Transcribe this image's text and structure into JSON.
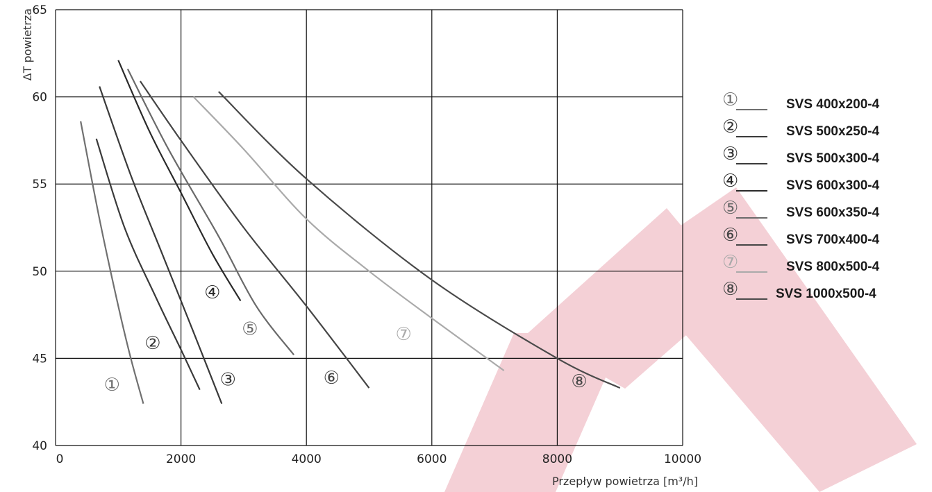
{
  "chart_data": {
    "type": "line",
    "xlabel": "Przepływ powietrza [m³/h]",
    "ylabel": "ΔT powietrza",
    "xlim": [
      0,
      10000
    ],
    "ylim": [
      40,
      65
    ],
    "xticks": [
      "0",
      "2000",
      "4000",
      "6000",
      "8000",
      "10000"
    ],
    "yticks": [
      "40",
      "45",
      "50",
      "55",
      "60",
      "65"
    ],
    "grid": true,
    "legend_position": "right",
    "series": [
      {
        "name": "SVS 400x200-4",
        "marker": "①",
        "color": "#707070",
        "label_at": [
          900,
          43.5
        ],
        "points": [
          [
            400,
            58.6
          ],
          [
            700,
            53.0
          ],
          [
            1000,
            48.0
          ],
          [
            1200,
            45.0
          ],
          [
            1400,
            42.4
          ]
        ]
      },
      {
        "name": "SVS 500x250-4",
        "marker": "②",
        "color": "#3a3a3a",
        "label_at": [
          1550,
          45.9
        ],
        "points": [
          [
            650,
            57.6
          ],
          [
            1100,
            52.5
          ],
          [
            1600,
            48.5
          ],
          [
            2000,
            45.5
          ],
          [
            2300,
            43.2
          ]
        ]
      },
      {
        "name": "SVS 500x300-4",
        "marker": "③",
        "color": "#3a3a3a",
        "label_at": [
          2750,
          43.8
        ],
        "points": [
          [
            700,
            60.6
          ],
          [
            1200,
            55.5
          ],
          [
            1700,
            51.0
          ],
          [
            2200,
            46.5
          ],
          [
            2650,
            42.4
          ]
        ]
      },
      {
        "name": "SVS 600x300-4",
        "marker": "④",
        "color": "#2a2a2a",
        "label_at": [
          2500,
          48.8
        ],
        "points": [
          [
            1000,
            62.1
          ],
          [
            1500,
            58.0
          ],
          [
            2000,
            54.5
          ],
          [
            2500,
            51.0
          ],
          [
            2950,
            48.3
          ]
        ]
      },
      {
        "name": "SVS 600x350-4",
        "marker": "⑤",
        "color": "#6a6a6a",
        "label_at": [
          3100,
          46.7
        ],
        "points": [
          [
            1150,
            61.6
          ],
          [
            1800,
            57.0
          ],
          [
            2600,
            52.0
          ],
          [
            3200,
            48.0
          ],
          [
            3800,
            45.2
          ]
        ]
      },
      {
        "name": "SVS 700x400-4",
        "marker": "⑥",
        "color": "#454545",
        "label_at": [
          4400,
          43.9
        ],
        "points": [
          [
            1350,
            60.9
          ],
          [
            2000,
            57.5
          ],
          [
            3000,
            52.5
          ],
          [
            4000,
            48.0
          ],
          [
            5000,
            43.3
          ]
        ]
      },
      {
        "name": "SVS 800x500-4",
        "marker": "⑦",
        "color": "#aaaaaa",
        "label_at": [
          5550,
          46.4
        ],
        "points": [
          [
            2200,
            60.0
          ],
          [
            3000,
            57.0
          ],
          [
            4000,
            53.0
          ],
          [
            5000,
            50.0
          ],
          [
            6000,
            47.3
          ],
          [
            7150,
            44.3
          ]
        ]
      },
      {
        "name": "SVS 1000x500-4",
        "marker": "⑧",
        "color": "#4a4a4a",
        "label_at": [
          8350,
          43.7
        ],
        "points": [
          [
            2600,
            60.3
          ],
          [
            4000,
            55.3
          ],
          [
            6000,
            49.5
          ],
          [
            8000,
            45.0
          ],
          [
            9000,
            43.3
          ]
        ]
      }
    ]
  },
  "watermark": {
    "color": "#f4d0d6"
  }
}
